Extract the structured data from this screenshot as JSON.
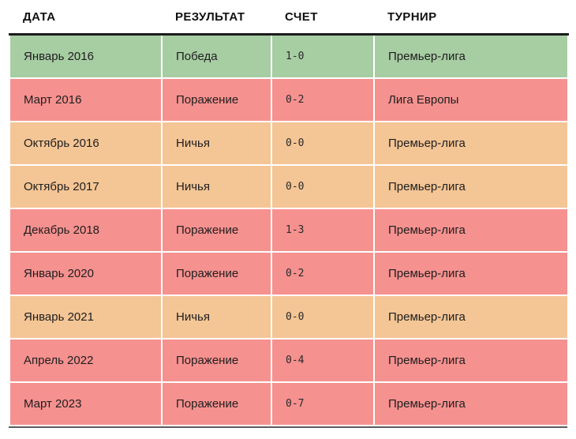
{
  "chart_data": {
    "type": "table",
    "title": "",
    "columns": [
      "ДАТА",
      "РЕЗУЛЬТАТ",
      "СЧЕТ",
      "ТУРНИР"
    ],
    "rows": [
      {
        "date": "Январь 2016",
        "result": "Победа",
        "score": "1-0",
        "tournament": "Премьер-лига",
        "status": "win"
      },
      {
        "date": "Март 2016",
        "result": "Поражение",
        "score": "0-2",
        "tournament": "Лига Европы",
        "status": "loss"
      },
      {
        "date": "Октябрь 2016",
        "result": "Ничья",
        "score": "0-0",
        "tournament": "Премьер-лига",
        "status": "draw"
      },
      {
        "date": "Октябрь 2017",
        "result": "Ничья",
        "score": "0-0",
        "tournament": "Премьер-лига",
        "status": "draw"
      },
      {
        "date": "Декабрь 2018",
        "result": "Поражение",
        "score": "1-3",
        "tournament": "Премьер-лига",
        "status": "loss"
      },
      {
        "date": "Январь 2020",
        "result": "Поражение",
        "score": "0-2",
        "tournament": "Премьер-лига",
        "status": "loss"
      },
      {
        "date": "Январь 2021",
        "result": "Ничья",
        "score": "0-0",
        "tournament": "Премьер-лига",
        "status": "draw"
      },
      {
        "date": "Апрель 2022",
        "result": "Поражение",
        "score": "0-4",
        "tournament": "Премьер-лига",
        "status": "loss"
      },
      {
        "date": "Март 2023",
        "result": "Поражение",
        "score": "0-7",
        "tournament": "Премьер-лига",
        "status": "loss"
      }
    ],
    "status_colors": {
      "win": "#a7cda3",
      "loss": "#f5918f",
      "draw": "#f4c595"
    },
    "layout": {
      "legend": "none",
      "grid": "white 2px cell separators",
      "header_rule_color": "#1b1b1b",
      "bottom_rule_color": "#5c5c5c"
    }
  }
}
